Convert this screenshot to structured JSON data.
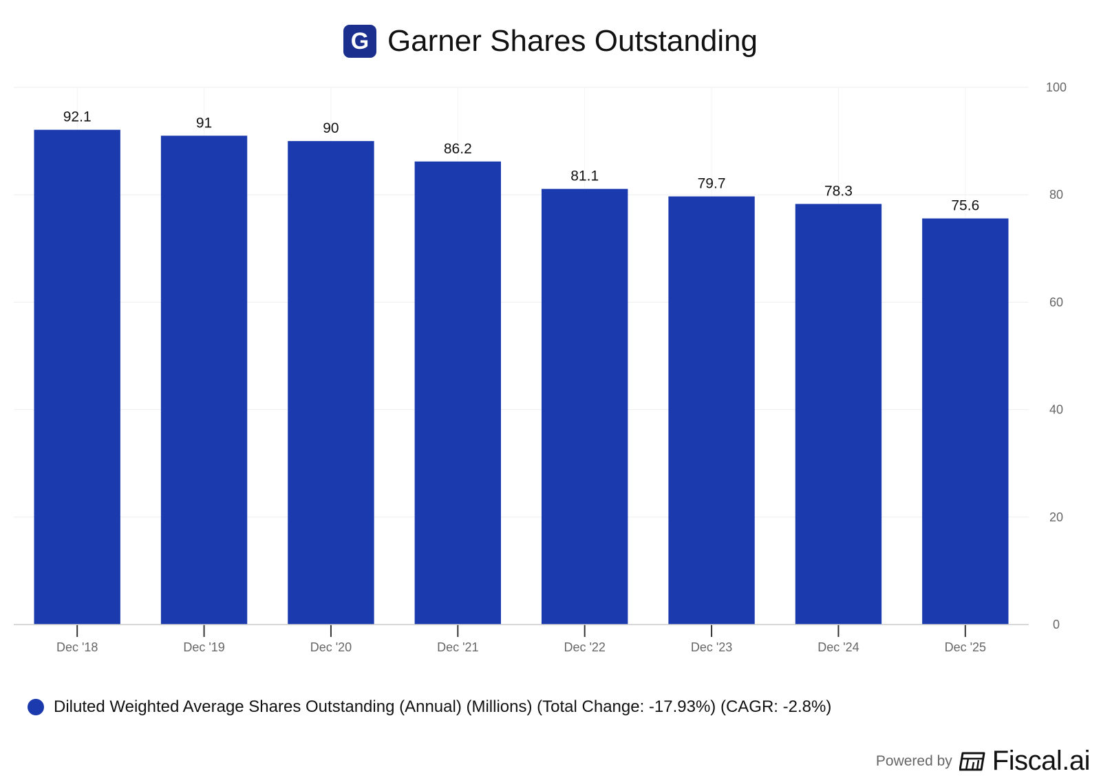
{
  "header": {
    "logo_letter": "G",
    "title": "Garner Shares Outstanding"
  },
  "colors": {
    "bar": "#1a3aad",
    "logo": "#1b2f8f",
    "grid": "#eeeeee",
    "axis_text": "#666666"
  },
  "chart_data": {
    "type": "bar",
    "title": "Garner Shares Outstanding",
    "categories": [
      "Dec '18",
      "Dec '19",
      "Dec '20",
      "Dec '21",
      "Dec '22",
      "Dec '23",
      "Dec '24",
      "Dec '25"
    ],
    "values": [
      92.1,
      91,
      90,
      86.2,
      81.1,
      79.7,
      78.3,
      75.6
    ],
    "value_labels": [
      "92.1",
      "91",
      "90",
      "86.2",
      "81.1",
      "79.7",
      "78.3",
      "75.6"
    ],
    "ylim": [
      0,
      100
    ],
    "yticks": [
      0,
      20,
      40,
      60,
      80,
      100
    ],
    "y_axis_side": "right",
    "xlabel": "",
    "ylabel": "",
    "grid": true,
    "legend_position": "bottom-left",
    "series": [
      {
        "name": "Diluted Weighted Average Shares Outstanding (Annual) (Millions) (Total Change: -17.93%) (CAGR: -2.8%)",
        "values": [
          92.1,
          91,
          90,
          86.2,
          81.1,
          79.7,
          78.3,
          75.6
        ]
      }
    ]
  },
  "legend": {
    "label": "Diluted Weighted Average Shares Outstanding (Annual) (Millions) (Total Change: -17.93%) (CAGR: -2.8%)"
  },
  "footer": {
    "powered_by": "Powered by",
    "brand": "Fiscal.ai",
    "brand_icon": "fiscal-ai-logo-icon"
  }
}
